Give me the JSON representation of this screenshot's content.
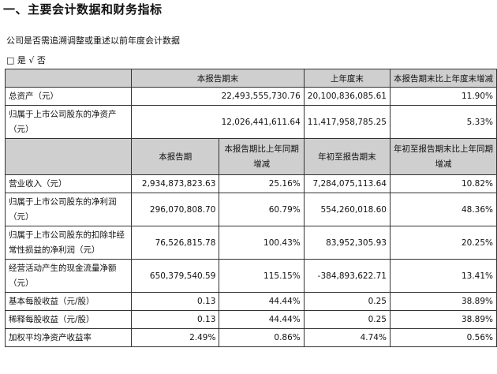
{
  "section_title": "一、主要会计数据和财务指标",
  "retro_note": "公司是否需追溯调整或重述以前年度会计数据",
  "retro_choice": "□ 是 √ 否",
  "table1": {
    "headers": [
      "",
      "本报告期末",
      "上年度末",
      "本报告期末比上年度末增减"
    ],
    "rows": [
      {
        "label": "总资产（元）",
        "current": "22,493,555,730.76",
        "prior": "20,100,836,085.61",
        "change": "11.90%"
      },
      {
        "label": "归属于上市公司股东的净资产（元）",
        "current": "12,026,441,611.64",
        "prior": "11,417,958,785.25",
        "change": "5.33%"
      }
    ]
  },
  "table2": {
    "headers": [
      "",
      "本报告期",
      "本报告期比上年同期增减",
      "年初至报告期末",
      "年初至报告期末比上年同期增减"
    ],
    "rows": [
      {
        "label": "营业收入（元）",
        "period": "2,934,873,823.63",
        "period_change": "25.16%",
        "ytd": "7,284,075,113.64",
        "ytd_change": "10.82%"
      },
      {
        "label": "归属于上市公司股东的净利润（元）",
        "period": "296,070,808.70",
        "period_change": "60.79%",
        "ytd": "554,260,018.60",
        "ytd_change": "48.36%"
      },
      {
        "label": "归属于上市公司股东的扣除非经常性损益的净利润（元）",
        "period": "76,526,815.78",
        "period_change": "100.43%",
        "ytd": "83,952,305.93",
        "ytd_change": "20.25%"
      },
      {
        "label": "经营活动产生的现金流量净额（元）",
        "period": "650,379,540.59",
        "period_change": "115.15%",
        "ytd": "-384,893,622.71",
        "ytd_change": "13.41%"
      },
      {
        "label": "基本每股收益（元/股）",
        "period": "0.13",
        "period_change": "44.44%",
        "ytd": "0.25",
        "ytd_change": "38.89%"
      },
      {
        "label": "稀释每股收益（元/股）",
        "period": "0.13",
        "period_change": "44.44%",
        "ytd": "0.25",
        "ytd_change": "38.89%"
      },
      {
        "label": "加权平均净资产收益率",
        "period": "2.49%",
        "period_change": "0.86%",
        "ytd": "4.74%",
        "ytd_change": "0.56%"
      }
    ]
  }
}
